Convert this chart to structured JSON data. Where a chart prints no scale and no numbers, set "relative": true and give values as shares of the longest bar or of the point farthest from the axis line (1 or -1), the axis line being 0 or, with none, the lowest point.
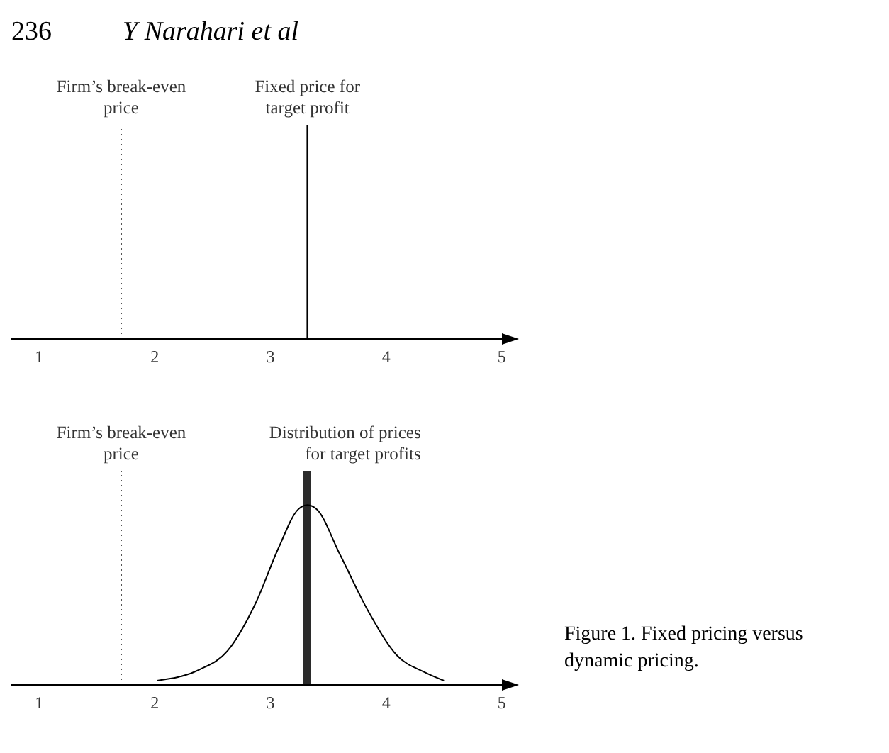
{
  "chart_data": [
    {
      "type": "line",
      "relative": true,
      "annotations": [
        "236",
        "Y Narahari et al",
        {
          "text": "Fixed price for\ntarget profit",
          "x": 3.32,
          "y": 1
        }
      ],
      "xlim": [
        0.76,
        5.05
      ],
      "xticks": [
        1,
        2,
        3,
        4,
        5
      ],
      "series": [
        {
          "color": "#000000",
          "x": [
            3.32,
            3.32
          ],
          "values": [
            0,
            1
          ]
        }
      ],
      "ref_lines": [
        {
          "axis": "x",
          "value": 1.71,
          "label": "Firm’s break-even\nprice",
          "line_style": "dotted",
          "color": "#555555"
        }
      ]
    },
    {
      "type": "line",
      "relative": true,
      "xlim": [
        0.76,
        5.05
      ],
      "xticks": [
        1,
        2,
        3,
        4,
        5
      ],
      "series": [
        {
          "color": "#000000",
          "x": [
            2.02,
            2.38,
            2.63,
            2.87,
            3.07,
            3.24,
            3.32,
            3.4,
            3.6,
            3.85,
            4.09,
            4.33,
            4.5
          ],
          "values": [
            0.02,
            0.07,
            0.16,
            0.38,
            0.64,
            0.82,
            0.84,
            0.82,
            0.61,
            0.34,
            0.14,
            0.06,
            0.02
          ]
        },
        {
          "type": "bar",
          "color": "#2b2b2b",
          "x": [
            3.32
          ],
          "values": [
            1
          ]
        }
      ],
      "ref_lines": [
        {
          "axis": "x",
          "value": 1.71,
          "label": "Firm’s break-even\nprice",
          "line_style": "dotted",
          "color": "#555555"
        }
      ],
      "annotations": [
        {
          "text": "Distribution of prices\nfor target profits",
          "x": 3.32,
          "y": 1
        },
        "Figure 1.   Fixed pricing versus dynamic pricing."
      ]
    }
  ]
}
